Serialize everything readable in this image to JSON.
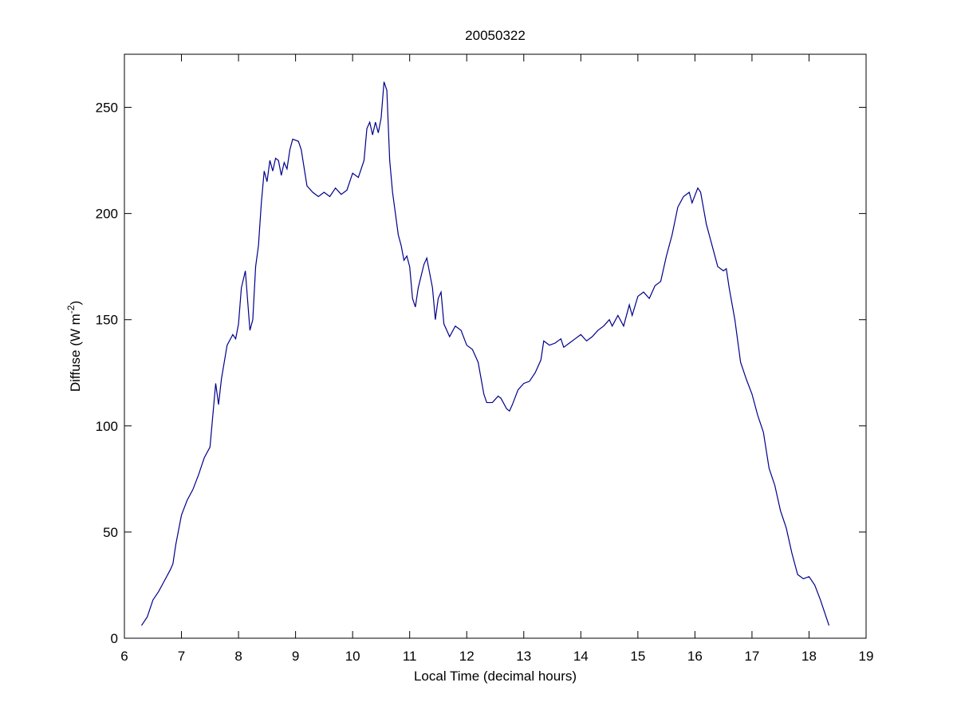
{
  "chart_data": {
    "type": "line",
    "title": "20050322",
    "xlabel": "Local Time (decimal hours)",
    "ylabel": [
      "Diffuse (W m",
      "-2",
      ")"
    ],
    "xlim": [
      6,
      19
    ],
    "xticks": [
      6,
      7,
      8,
      9,
      10,
      11,
      12,
      13,
      14,
      15,
      16,
      17,
      18,
      19
    ],
    "ylim": [
      0,
      275
    ],
    "yticks": [
      0,
      50,
      100,
      150,
      200,
      250
    ],
    "grid": false,
    "series": [
      {
        "color": "#00008b",
        "x": [
          6.3,
          6.4,
          6.5,
          6.6,
          6.7,
          6.8,
          6.85,
          6.9,
          7.0,
          7.1,
          7.2,
          7.3,
          7.4,
          7.5,
          7.55,
          7.6,
          7.65,
          7.7,
          7.8,
          7.9,
          7.95,
          8.0,
          8.05,
          8.12,
          8.2,
          8.25,
          8.3,
          8.35,
          8.4,
          8.45,
          8.5,
          8.55,
          8.6,
          8.65,
          8.7,
          8.75,
          8.8,
          8.85,
          8.9,
          8.95,
          9.05,
          9.1,
          9.2,
          9.3,
          9.4,
          9.5,
          9.6,
          9.7,
          9.8,
          9.9,
          10.0,
          10.1,
          10.2,
          10.25,
          10.3,
          10.35,
          10.4,
          10.45,
          10.5,
          10.55,
          10.6,
          10.65,
          10.7,
          10.75,
          10.8,
          10.85,
          10.9,
          10.95,
          11.0,
          11.05,
          11.1,
          11.15,
          11.25,
          11.3,
          11.4,
          11.45,
          11.5,
          11.55,
          11.6,
          11.7,
          11.8,
          11.9,
          12.0,
          12.1,
          12.2,
          12.3,
          12.35,
          12.45,
          12.55,
          12.6,
          12.7,
          12.75,
          12.8,
          12.9,
          13.0,
          13.1,
          13.2,
          13.3,
          13.35,
          13.45,
          13.55,
          13.65,
          13.7,
          13.8,
          13.9,
          14.0,
          14.1,
          14.2,
          14.3,
          14.4,
          14.5,
          14.55,
          14.65,
          14.75,
          14.85,
          14.9,
          15.0,
          15.1,
          15.2,
          15.3,
          15.4,
          15.5,
          15.6,
          15.7,
          15.8,
          15.9,
          15.95,
          16.05,
          16.1,
          16.2,
          16.3,
          16.4,
          16.5,
          16.55,
          16.6,
          16.7,
          16.8,
          16.9,
          17.0,
          17.1,
          17.2,
          17.3,
          17.4,
          17.5,
          17.6,
          17.7,
          17.8,
          17.9,
          18.0,
          18.1,
          18.2,
          18.35
        ],
        "values": [
          6,
          10,
          18,
          22,
          27,
          32,
          35,
          44,
          58,
          65,
          70,
          77,
          85,
          90,
          105,
          120,
          110,
          122,
          138,
          143,
          141,
          148,
          165,
          173,
          145,
          150,
          175,
          185,
          205,
          220,
          215,
          225,
          220,
          226,
          225,
          218,
          224,
          221,
          230,
          235,
          234,
          230,
          213,
          210,
          208,
          210,
          208,
          212,
          209,
          211,
          219,
          217,
          225,
          240,
          243,
          237,
          243,
          238,
          245,
          262,
          258,
          225,
          210,
          200,
          190,
          185,
          178,
          180,
          175,
          160,
          156,
          165,
          176,
          179,
          165,
          150,
          160,
          163,
          148,
          142,
          147,
          145,
          138,
          136,
          130,
          115,
          111,
          111,
          114,
          113,
          108,
          107,
          110,
          117,
          120,
          121,
          125,
          131,
          140,
          138,
          139,
          141,
          137,
          139,
          141,
          143,
          140,
          142,
          145,
          147,
          150,
          147,
          152,
          147,
          157,
          152,
          161,
          163,
          160,
          166,
          168,
          180,
          190,
          203,
          208,
          210,
          205,
          212,
          210,
          195,
          185,
          175,
          173,
          174,
          165,
          150,
          130,
          122,
          115,
          105,
          97,
          80,
          72,
          60,
          52,
          40,
          30,
          28,
          29,
          25,
          18,
          6
        ]
      }
    ]
  }
}
